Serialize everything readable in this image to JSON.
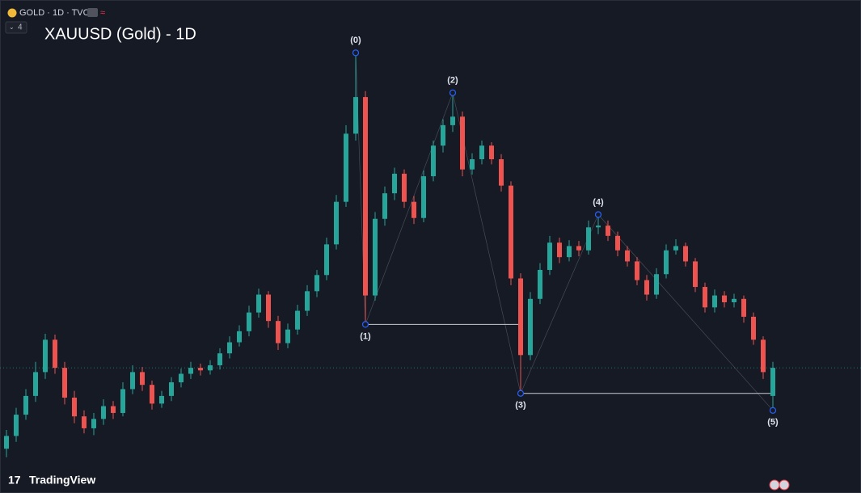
{
  "header": {
    "symbol": "GOLD · 1D · TVC",
    "indicator_count": 4
  },
  "chart_data": {
    "type": "candlestick",
    "title": "XAUUSD (Gold) - 1D",
    "up_color": "#26a69a",
    "down_color": "#ef5350",
    "pivot_color": "#2962ff",
    "ylim": [
      1558,
      2137
    ],
    "candles": [
      [
        1610,
        1632,
        1600,
        1625
      ],
      [
        1625,
        1658,
        1618,
        1650
      ],
      [
        1650,
        1680,
        1644,
        1672
      ],
      [
        1672,
        1712,
        1665,
        1700
      ],
      [
        1700,
        1745,
        1692,
        1738
      ],
      [
        1738,
        1744,
        1698,
        1705
      ],
      [
        1705,
        1712,
        1662,
        1670
      ],
      [
        1670,
        1678,
        1640,
        1648
      ],
      [
        1648,
        1655,
        1628,
        1634
      ],
      [
        1634,
        1652,
        1626,
        1645
      ],
      [
        1645,
        1668,
        1638,
        1660
      ],
      [
        1660,
        1666,
        1645,
        1652
      ],
      [
        1652,
        1688,
        1648,
        1680
      ],
      [
        1680,
        1708,
        1674,
        1700
      ],
      [
        1700,
        1706,
        1678,
        1685
      ],
      [
        1685,
        1690,
        1656,
        1663
      ],
      [
        1663,
        1678,
        1658,
        1672
      ],
      [
        1672,
        1694,
        1666,
        1688
      ],
      [
        1688,
        1704,
        1682,
        1698
      ],
      [
        1698,
        1712,
        1692,
        1705
      ],
      [
        1705,
        1710,
        1696,
        1702
      ],
      [
        1702,
        1714,
        1697,
        1708
      ],
      [
        1708,
        1728,
        1703,
        1722
      ],
      [
        1722,
        1742,
        1716,
        1735
      ],
      [
        1735,
        1755,
        1730,
        1748
      ],
      [
        1748,
        1778,
        1742,
        1770
      ],
      [
        1770,
        1798,
        1764,
        1791
      ],
      [
        1791,
        1795,
        1752,
        1760
      ],
      [
        1760,
        1766,
        1726,
        1734
      ],
      [
        1734,
        1757,
        1728,
        1750
      ],
      [
        1750,
        1779,
        1744,
        1772
      ],
      [
        1772,
        1802,
        1766,
        1795
      ],
      [
        1795,
        1820,
        1788,
        1814
      ],
      [
        1814,
        1858,
        1808,
        1850
      ],
      [
        1850,
        1908,
        1844,
        1900
      ],
      [
        1900,
        1990,
        1894,
        1980
      ],
      [
        1980,
        2075,
        1972,
        2023
      ],
      [
        2023,
        2030,
        1756,
        1790
      ],
      [
        1790,
        1888,
        1784,
        1880
      ],
      [
        1880,
        1918,
        1872,
        1910
      ],
      [
        1910,
        1940,
        1902,
        1933
      ],
      [
        1933,
        1938,
        1893,
        1900
      ],
      [
        1900,
        1907,
        1874,
        1881
      ],
      [
        1881,
        1937,
        1876,
        1930
      ],
      [
        1930,
        1972,
        1924,
        1966
      ],
      [
        1966,
        1997,
        1958,
        1990
      ],
      [
        1990,
        2028,
        1982,
        2000
      ],
      [
        2000,
        2006,
        1930,
        1938
      ],
      [
        1938,
        1957,
        1932,
        1950
      ],
      [
        1950,
        1972,
        1944,
        1966
      ],
      [
        1966,
        1970,
        1944,
        1950
      ],
      [
        1950,
        1956,
        1912,
        1919
      ],
      [
        1919,
        1924,
        1802,
        1810
      ],
      [
        1810,
        1816,
        1675,
        1720
      ],
      [
        1720,
        1794,
        1714,
        1786
      ],
      [
        1786,
        1828,
        1780,
        1820
      ],
      [
        1820,
        1860,
        1814,
        1852
      ],
      [
        1852,
        1858,
        1828,
        1835
      ],
      [
        1835,
        1855,
        1830,
        1848
      ],
      [
        1848,
        1854,
        1836,
        1843
      ],
      [
        1843,
        1878,
        1838,
        1870
      ],
      [
        1870,
        1885,
        1862,
        1872
      ],
      [
        1872,
        1878,
        1854,
        1860
      ],
      [
        1860,
        1865,
        1836,
        1843
      ],
      [
        1843,
        1848,
        1824,
        1830
      ],
      [
        1830,
        1835,
        1802,
        1808
      ],
      [
        1808,
        1814,
        1784,
        1791
      ],
      [
        1791,
        1822,
        1786,
        1815
      ],
      [
        1815,
        1850,
        1810,
        1843
      ],
      [
        1843,
        1856,
        1838,
        1848
      ],
      [
        1848,
        1852,
        1824,
        1830
      ],
      [
        1830,
        1834,
        1794,
        1800
      ],
      [
        1800,
        1805,
        1770,
        1776
      ],
      [
        1776,
        1797,
        1770,
        1790
      ],
      [
        1790,
        1795,
        1776,
        1782
      ],
      [
        1782,
        1792,
        1776,
        1786
      ],
      [
        1786,
        1790,
        1758,
        1765
      ],
      [
        1765,
        1770,
        1732,
        1738
      ],
      [
        1738,
        1742,
        1692,
        1700
      ],
      [
        1672,
        1712,
        1655,
        1705
      ]
    ],
    "pivots": [
      {
        "label": "(0)",
        "index": 36,
        "price": 2075,
        "side": "above"
      },
      {
        "label": "(1)",
        "index": 37,
        "price": 1756,
        "side": "below"
      },
      {
        "label": "(2)",
        "index": 46,
        "price": 2028,
        "side": "above"
      },
      {
        "label": "(3)",
        "index": 53,
        "price": 1675,
        "side": "below"
      },
      {
        "label": "(4)",
        "index": 61,
        "price": 1885,
        "side": "above"
      },
      {
        "label": "(5)",
        "index": 79,
        "price": 1655,
        "side": "below"
      }
    ],
    "last_price_line": true
  },
  "footer": {
    "brand": "TradingView"
  }
}
